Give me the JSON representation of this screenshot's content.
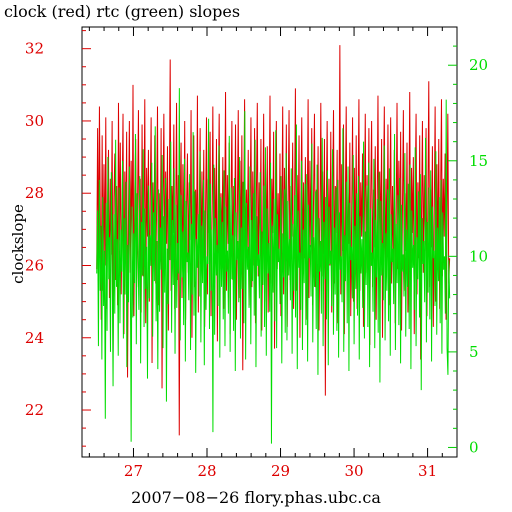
{
  "chart_data": {
    "type": "line",
    "title": "clock (red) rtc (green) slopes",
    "xlabel": "2007−08−26 flory.phas.ubc.ca",
    "ylabel": "clockslope",
    "xlim": [
      26.3,
      31.4
    ],
    "x_ticks": [
      "27",
      "28",
      "29",
      "30",
      "31"
    ],
    "y_left": {
      "label": "clockslope",
      "lim": [
        20.7,
        32.6
      ],
      "ticks": [
        "22",
        "24",
        "26",
        "28",
        "30",
        "32"
      ],
      "color": "#dd0000"
    },
    "y_right": {
      "lim": [
        -0.5,
        22.0
      ],
      "ticks": [
        "0",
        "5",
        "10",
        "15",
        "20"
      ],
      "color": "#00dd00"
    },
    "grid": false,
    "series": [
      {
        "name": "clock",
        "color": "#dd0000",
        "axis": "left",
        "x_start": 26.5,
        "x_end": 31.3,
        "values": [
          25.9,
          29.8,
          26.1,
          30.4,
          27.2,
          24.5,
          29.6,
          25.3,
          28.8,
          26.0,
          30.1,
          24.8,
          27.6,
          29.2,
          25.1,
          28.4,
          26.3,
          30.0,
          23.6,
          27.9,
          29.1,
          25.6,
          28.2,
          24.9,
          30.5,
          26.7,
          29.4,
          25.2,
          27.8,
          30.2,
          24.1,
          28.6,
          26.5,
          29.7,
          22.9,
          27.3,
          30.0,
          25.8,
          28.9,
          26.2,
          31.0,
          24.6,
          28.1,
          29.5,
          25.4,
          27.6,
          30.3,
          26.0,
          28.4,
          24.7,
          29.9,
          25.7,
          27.2,
          30.6,
          24.4,
          28.7,
          26.8,
          29.2,
          25.0,
          27.9,
          30.1,
          23.3,
          28.3,
          26.4,
          29.6,
          25.5,
          27.5,
          30.4,
          24.9,
          28.0,
          26.1,
          29.8,
          22.6,
          27.4,
          30.2,
          25.9,
          28.6,
          26.6,
          29.3,
          24.2,
          27.8,
          31.7,
          25.3,
          28.2,
          26.9,
          29.9,
          24.8,
          27.1,
          30.5,
          25.6,
          28.5,
          21.3,
          27.7,
          29.4,
          25.1,
          28.8,
          26.3,
          30.0,
          24.5,
          27.6,
          29.1,
          25.8,
          28.3,
          26.7,
          30.3,
          24.0,
          27.9,
          29.6,
          25.4,
          28.1,
          26.2,
          30.7,
          24.7,
          27.3,
          29.8,
          25.7,
          28.6,
          26.5,
          29.2,
          24.3,
          27.5,
          30.1,
          25.2,
          28.4,
          26.9,
          29.7,
          24.6,
          27.0,
          30.4,
          25.5,
          28.7,
          26.1,
          29.5,
          23.9,
          27.8,
          30.2,
          25.9,
          28.0,
          26.4,
          29.0,
          24.8,
          27.2,
          30.8,
          25.3,
          28.5,
          26.6,
          29.4,
          24.1,
          27.7,
          30.0,
          25.6,
          28.2,
          26.8,
          29.9,
          24.5,
          27.4,
          30.3,
          25.1,
          28.9,
          26.2,
          29.6,
          23.1,
          27.6,
          30.6,
          25.8,
          28.1,
          26.5,
          29.2,
          24.9,
          27.3,
          30.1,
          25.4,
          28.6,
          26.0,
          29.8,
          24.4,
          27.9,
          30.5,
          25.7,
          28.3,
          26.7,
          29.5,
          24.2,
          27.1,
          30.2,
          25.0,
          28.8,
          26.3,
          29.3,
          24.7,
          27.5,
          30.7,
          25.5,
          28.4,
          26.9,
          29.7,
          23.7,
          27.8,
          30.0,
          25.9,
          28.0,
          26.1,
          29.1,
          24.6,
          27.2,
          30.4,
          25.2,
          28.7,
          26.4,
          29.9,
          24.3,
          27.6,
          30.3,
          25.6,
          28.2,
          26.8,
          29.4,
          24.8,
          27.4,
          30.9,
          25.3,
          28.5,
          26.6,
          29.6,
          24.0,
          27.7,
          30.1,
          25.8,
          28.3,
          26.2,
          29.0,
          24.5,
          27.3,
          30.6,
          25.1,
          28.9,
          26.5,
          29.8,
          24.9,
          27.9,
          30.2,
          25.4,
          28.1,
          26.7,
          29.3,
          24.2,
          27.0,
          30.5,
          25.7,
          28.6,
          26.3,
          29.5,
          22.4,
          27.5,
          30.0,
          25.9,
          28.4,
          26.0,
          29.7,
          24.7,
          27.8,
          30.3,
          25.5,
          28.2,
          26.9,
          29.2,
          24.4,
          27.2,
          32.1,
          25.2,
          28.8,
          26.4,
          29.9,
          24.1,
          27.6,
          30.4,
          25.6,
          28.0,
          26.6,
          29.4,
          24.6,
          27.4,
          30.1,
          25.0,
          28.7,
          26.1,
          29.6,
          24.8,
          27.7,
          30.6,
          25.3,
          28.3,
          26.8,
          29.1,
          24.3,
          27.1,
          30.2,
          25.8,
          28.5,
          26.2,
          29.8,
          23.8,
          27.9,
          30.0,
          25.4,
          28.1,
          26.5,
          29.3,
          24.5,
          27.3,
          30.7,
          25.7,
          28.6,
          26.7,
          29.5,
          24.0,
          27.8,
          30.4,
          25.1,
          28.4,
          26.3,
          29.9,
          24.9,
          27.5,
          30.1,
          25.5,
          28.2,
          26.0,
          29.2,
          24.4,
          27.0,
          30.5,
          25.9,
          28.9,
          26.6,
          29.7,
          24.2,
          27.6,
          30.3,
          25.3,
          28.0,
          26.4,
          29.4,
          24.7,
          27.2,
          30.8,
          25.6,
          28.7,
          26.9,
          29.0,
          24.1,
          27.9,
          30.2,
          25.2,
          28.3,
          26.2,
          29.6,
          23.4,
          27.4,
          30.0,
          25.8,
          28.5,
          26.7,
          29.8,
          24.6,
          27.7,
          31.1,
          25.4,
          28.1,
          26.5,
          29.3,
          24.3,
          27.3,
          30.4,
          25.0,
          28.8,
          26.1,
          29.5,
          24.8,
          27.8,
          30.6,
          25.7,
          28.4,
          26.8,
          29.1,
          24.5,
          26.9,
          30.2,
          25.5,
          26.2
        ]
      },
      {
        "name": "rtc",
        "color": "#00dd00",
        "axis": "right",
        "x_start": 26.5,
        "x_end": 31.3,
        "values": [
          9.1,
          12.4,
          5.3,
          14.0,
          8.2,
          11.6,
          4.6,
          13.1,
          7.4,
          10.3,
          1.5,
          12.8,
          6.1,
          15.2,
          8.8,
          11.0,
          5.0,
          14.4,
          9.6,
          3.2,
          12.2,
          7.0,
          16.1,
          8.4,
          10.9,
          4.8,
          13.6,
          6.5,
          11.4,
          9.2,
          15.0,
          5.7,
          12.0,
          8.0,
          13.9,
          4.2,
          10.6,
          7.6,
          14.7,
          9.9,
          0.3,
          12.6,
          6.8,
          11.2,
          8.6,
          16.4,
          5.4,
          13.3,
          10.1,
          7.2,
          14.2,
          4.4,
          11.8,
          9.0,
          15.6,
          6.3,
          12.5,
          8.3,
          10.5,
          3.6,
          13.7,
          7.8,
          11.1,
          9.5,
          14.9,
          5.8,
          12.3,
          8.7,
          16.8,
          6.6,
          10.8,
          4.1,
          13.5,
          7.1,
          11.5,
          9.3,
          15.3,
          5.2,
          12.1,
          8.1,
          14.1,
          2.4,
          10.4,
          7.5,
          13.0,
          9.8,
          16.0,
          6.0,
          11.9,
          8.5,
          14.6,
          4.9,
          12.7,
          7.3,
          10.7,
          9.1,
          18.8,
          5.6,
          13.2,
          8.9,
          11.3,
          6.4,
          15.1,
          4.5,
          12.9,
          9.7,
          10.2,
          7.7,
          14.3,
          5.1,
          11.7,
          8.0,
          16.5,
          6.9,
          13.4,
          3.9,
          10.9,
          9.4,
          12.2,
          7.9,
          15.5,
          5.5,
          11.6,
          8.6,
          14.0,
          4.3,
          12.4,
          7.2,
          10.0,
          9.6,
          17.2,
          6.2,
          13.8,
          8.2,
          11.4,
          0.8,
          14.8,
          5.9,
          12.0,
          9.0,
          10.6,
          7.4,
          15.8,
          4.7,
          13.1,
          8.4,
          11.8,
          6.7,
          14.5,
          5.3,
          12.6,
          9.2,
          10.3,
          7.0,
          16.3,
          5.0,
          13.6,
          8.8,
          11.1,
          6.1,
          14.1,
          4.0,
          12.3,
          9.8,
          10.8,
          7.6,
          15.2,
          5.7,
          11.5,
          8.3,
          13.9,
          6.5,
          17.6,
          4.6,
          12.8,
          9.3,
          10.5,
          7.3,
          14.7,
          5.4,
          11.9,
          8.7,
          13.3,
          6.9,
          16.1,
          4.2,
          12.1,
          9.5,
          10.1,
          7.8,
          14.4,
          5.8,
          11.3,
          8.5,
          13.7,
          6.3,
          15.7,
          4.8,
          12.5,
          9.1,
          10.7,
          7.1,
          14.9,
          0.2,
          11.6,
          8.1,
          13.0,
          6.6,
          16.6,
          5.2,
          12.2,
          9.7,
          10.4,
          7.5,
          14.2,
          4.4,
          11.2,
          8.9,
          13.5,
          6.0,
          15.4,
          5.6,
          12.9,
          9.0,
          10.9,
          7.7,
          14.6,
          4.9,
          11.7,
          8.2,
          13.2,
          6.8,
          16.9,
          4.1,
          12.4,
          9.4,
          10.2,
          7.2,
          15.0,
          5.1,
          11.4,
          8.6,
          13.8,
          6.4,
          14.3,
          4.5,
          12.7,
          9.9,
          10.6,
          7.9,
          15.9,
          5.5,
          11.0,
          8.4,
          13.4,
          6.2,
          14.8,
          3.8,
          12.0,
          9.2,
          10.8,
          7.0,
          16.2,
          5.3,
          11.8,
          8.8,
          13.1,
          6.7,
          14.5,
          4.3,
          12.6,
          9.6,
          10.3,
          7.4,
          15.6,
          5.9,
          11.5,
          8.0,
          13.6,
          6.1,
          14.0,
          4.7,
          12.3,
          9.3,
          10.0,
          7.6,
          16.7,
          5.0,
          11.1,
          8.7,
          13.9,
          6.5,
          14.7,
          4.0,
          12.8,
          9.8,
          10.5,
          7.8,
          15.3,
          5.4,
          11.6,
          8.3,
          13.3,
          6.9,
          14.2,
          4.6,
          12.1,
          9.1,
          10.9,
          7.3,
          16.0,
          5.7,
          11.3,
          8.5,
          13.7,
          6.3,
          14.9,
          4.2,
          12.5,
          9.5,
          10.2,
          7.1,
          15.1,
          5.2,
          11.9,
          8.9,
          13.0,
          6.0,
          14.4,
          3.4,
          12.9,
          9.0,
          10.7,
          7.7,
          15.8,
          5.6,
          11.2,
          8.2,
          13.5,
          6.6,
          14.6,
          4.8,
          12.2,
          9.7,
          10.4,
          7.5,
          16.4,
          5.1,
          11.7,
          8.6,
          13.2,
          6.4,
          14.1,
          4.4,
          12.7,
          9.2,
          10.1,
          7.9,
          15.4,
          5.8,
          11.4,
          8.4,
          13.8,
          6.2,
          14.8,
          4.1,
          12.4,
          9.4,
          10.6,
          7.2,
          15.7,
          5.3,
          11.0,
          8.8,
          13.4,
          6.8,
          14.3,
          3.0,
          12.0,
          9.6,
          10.8,
          7.6,
          16.2,
          5.5,
          11.8,
          8.1,
          13.6,
          6.7,
          14.5,
          4.5,
          12.6,
          9.9,
          10.3,
          7.4,
          15.5,
          5.9,
          11.5,
          8.7,
          13.1,
          6.5,
          14.0,
          4.9,
          12.3,
          9.3,
          10.0,
          7.0,
          18.2,
          5.2,
          3.8,
          9.8,
          7.8
        ]
      }
    ]
  }
}
